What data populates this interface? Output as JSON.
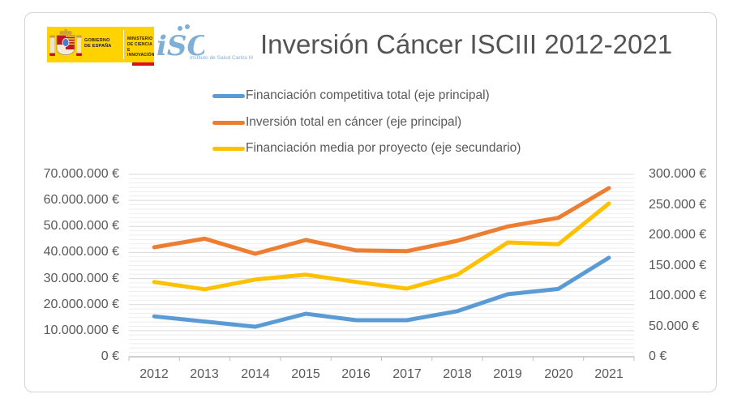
{
  "header": {
    "gobierno_logo": {
      "government_text": "GOBIERNO\nDE ESPAÑA",
      "ministry_text": "MINISTERIO\nDE CIENCIA\nE INNOVACIÓN",
      "bg_color": "#ffd200",
      "accent_color": "#d8101e"
    },
    "isciii_logo": {
      "glyph": "iSC",
      "caption": "Instituto de Salud Carlos III",
      "color": "#7fafd6"
    },
    "title": "Inversión Cáncer ISCIII 2012-2021",
    "title_color": "#545454"
  },
  "chart_data": {
    "type": "line",
    "title": "Inversión Cáncer ISCIII 2012-2021",
    "legend_position": "top",
    "categories": [
      "2012",
      "2013",
      "2014",
      "2015",
      "2016",
      "2017",
      "2018",
      "2019",
      "2020",
      "2021"
    ],
    "series": [
      {
        "name": "Financiación competitiva total (eje principal)",
        "axis": "primary",
        "color": "#5B9BD5",
        "values": [
          15500000,
          13500000,
          11500000,
          16500000,
          14000000,
          14000000,
          17500000,
          24000000,
          26000000,
          38000000
        ]
      },
      {
        "name": "Inversión total en cáncer (eje principal)",
        "axis": "primary",
        "color": "#ED7D31",
        "values": [
          42000000,
          45300000,
          39500000,
          44800000,
          40800000,
          40500000,
          44500000,
          50000000,
          53300000,
          64700000
        ]
      },
      {
        "name": "Financiación media por proyecto (eje secundario)",
        "axis": "secondary",
        "color": "#FFC000",
        "values": [
          123000,
          111000,
          127000,
          135000,
          123000,
          112000,
          135000,
          188000,
          185000,
          252000
        ]
      }
    ],
    "primary_axis": {
      "side": "left",
      "min": 0,
      "max": 70000000,
      "step": 10000000,
      "tick_labels": [
        "70.000.000 €",
        "60.000.000 €",
        "50.000.000 €",
        "40.000.000 €",
        "30.000.000 €",
        "20.000.000 €",
        "10.000.000 €",
        "0 €"
      ]
    },
    "secondary_axis": {
      "side": "right",
      "min": 0,
      "max": 300000,
      "step": 50000,
      "tick_labels": [
        "300.000 €",
        "250.000 €",
        "200.000 €",
        "150.000 €",
        "100.000 €",
        "50.000 €",
        "0 €"
      ]
    },
    "grid": {
      "major_color": "#d9d9d9",
      "minor_color": "#ededed",
      "minor_per_major": 6,
      "axis_line_color": "#bfbfbf"
    }
  }
}
